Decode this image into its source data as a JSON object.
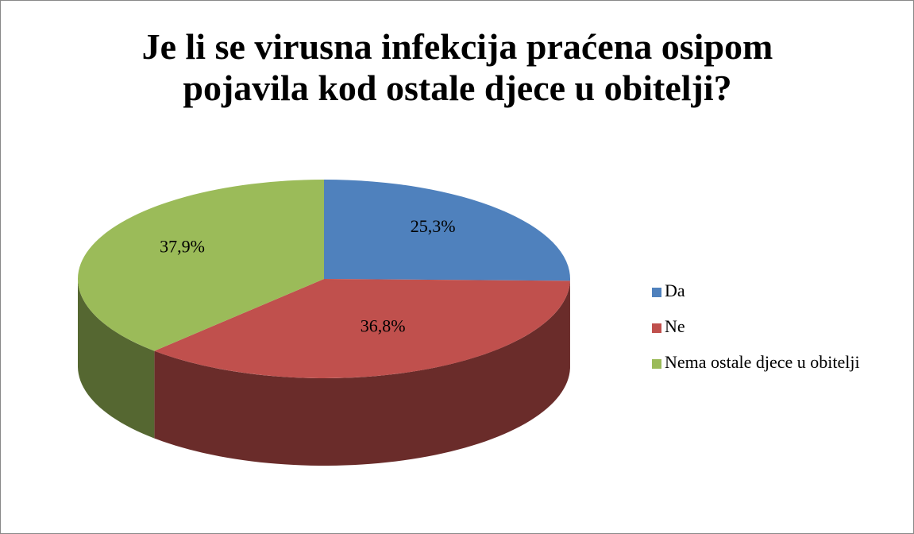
{
  "chart_data": {
    "type": "pie",
    "title": "Je li se virusna infekcija praćena osipom pojavila kod ostale djece u obitelji?",
    "categories": [
      "Da",
      "Ne",
      "Nema ostale djece u obitelji"
    ],
    "values": [
      25.3,
      36.8,
      37.9
    ],
    "value_labels": [
      "25,3%",
      "36,8%",
      "37,9%"
    ],
    "colors": [
      "#4f81bd",
      "#c0504d",
      "#9bbb59"
    ],
    "legend": "right"
  }
}
